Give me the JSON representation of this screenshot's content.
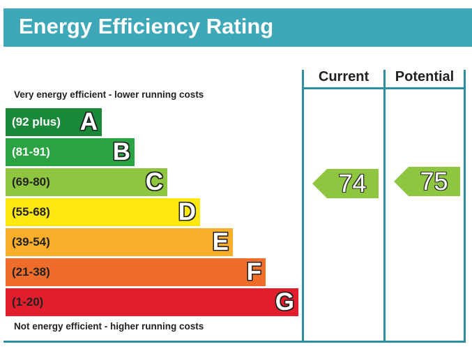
{
  "header": {
    "title": "Energy Efficiency Rating"
  },
  "chart_data": {
    "type": "bar",
    "title": "Energy Efficiency Rating",
    "top_note": "Very energy efficient - lower running costs",
    "bottom_note": "Not energy efficient - higher running costs",
    "bands": [
      {
        "letter": "A",
        "range": "(92 plus)",
        "color": "#1a8a3a",
        "light": false
      },
      {
        "letter": "B",
        "range": "(81-91)",
        "color": "#2aa342",
        "light": false
      },
      {
        "letter": "C",
        "range": "(69-80)",
        "color": "#8ec63f",
        "light": true
      },
      {
        "letter": "D",
        "range": "(55-68)",
        "color": "#ffe711",
        "light": true
      },
      {
        "letter": "E",
        "range": "(39-54)",
        "color": "#f9ae2b",
        "light": true
      },
      {
        "letter": "F",
        "range": "(21-38)",
        "color": "#ee6d2a",
        "light": true
      },
      {
        "letter": "G",
        "range": "(1-20)",
        "color": "#e21d2c",
        "light": true
      }
    ],
    "columns": [
      "Current",
      "Potential"
    ],
    "current": {
      "value": 74,
      "band": "C",
      "color": "#8ec63f"
    },
    "potential": {
      "value": 75,
      "band": "C",
      "color": "#8ec63f"
    }
  }
}
